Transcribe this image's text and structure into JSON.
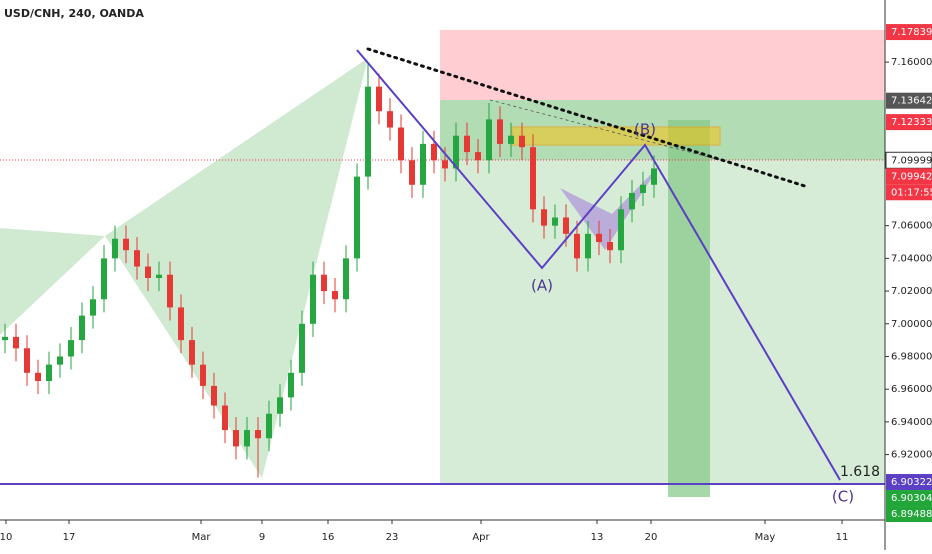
{
  "chart_data": {
    "type": "candlestick",
    "title": "USD/CNH, 240, OANDA",
    "up_color": "#26a641",
    "down_color": "#e53935",
    "ylim": [
      6.88,
      7.198
    ],
    "yticks": [
      {
        "value": 7.16,
        "label": "7.16000"
      },
      {
        "value": 7.06,
        "label": "7.06000"
      },
      {
        "value": 7.04,
        "label": "7.04000"
      },
      {
        "value": 7.02,
        "label": "7.02000"
      },
      {
        "value": 7.0,
        "label": "7.00000"
      },
      {
        "value": 6.98,
        "label": "6.98000"
      },
      {
        "value": 6.96,
        "label": "6.96000"
      },
      {
        "value": 6.94,
        "label": "6.94000"
      },
      {
        "value": 6.92,
        "label": "6.92000"
      }
    ],
    "price_labels": [
      {
        "value": 7.17839,
        "label": "7.17839",
        "color": "#f23645"
      },
      {
        "value": 7.13642,
        "label": "7.13642",
        "color": "#555555"
      },
      {
        "value": 7.12333,
        "label": "7.12333",
        "color": "#f23645"
      },
      {
        "value": 7.09999,
        "label": "7.09999",
        "color": "#ffffff"
      },
      {
        "value": 7.09942,
        "label": "7.09942",
        "color": "#f23645"
      },
      {
        "value": 6.90322,
        "label": "6.90322",
        "color": "#5b3fc4"
      },
      {
        "value": 6.90304,
        "label": "6.90304",
        "color": "#22a63a"
      },
      {
        "value": 6.89488,
        "label": "6.89488",
        "color": "#22a63a"
      }
    ],
    "countdown": "01:17:55",
    "xticks": [
      "10",
      "17",
      "Mar",
      "9",
      "16",
      "23",
      "Apr",
      "13",
      "20",
      "May",
      "11"
    ],
    "annotations": [
      "(A)",
      "(B)",
      "(C)",
      "1.618"
    ],
    "candles": [
      {
        "o": 6.99,
        "h": 7.0,
        "l": 6.982,
        "c": 6.992
      },
      {
        "o": 6.992,
        "h": 7.0,
        "l": 6.977,
        "c": 6.985
      },
      {
        "o": 6.985,
        "h": 6.993,
        "l": 6.962,
        "c": 6.97
      },
      {
        "o": 6.97,
        "h": 6.978,
        "l": 6.957,
        "c": 6.965
      },
      {
        "o": 6.965,
        "h": 6.983,
        "l": 6.957,
        "c": 6.975
      },
      {
        "o": 6.975,
        "h": 6.988,
        "l": 6.967,
        "c": 6.98
      },
      {
        "o": 6.98,
        "h": 6.998,
        "l": 6.972,
        "c": 6.99
      },
      {
        "o": 6.99,
        "h": 7.013,
        "l": 6.982,
        "c": 7.005
      },
      {
        "o": 7.005,
        "h": 7.023,
        "l": 6.997,
        "c": 7.015
      },
      {
        "o": 7.015,
        "h": 7.048,
        "l": 7.007,
        "c": 7.04
      },
      {
        "o": 7.04,
        "h": 7.06,
        "l": 7.032,
        "c": 7.052
      },
      {
        "o": 7.052,
        "h": 7.06,
        "l": 7.037,
        "c": 7.045
      },
      {
        "o": 7.045,
        "h": 7.053,
        "l": 7.027,
        "c": 7.035
      },
      {
        "o": 7.035,
        "h": 7.043,
        "l": 7.02,
        "c": 7.028
      },
      {
        "o": 7.028,
        "h": 7.038,
        "l": 7.02,
        "c": 7.03
      },
      {
        "o": 7.03,
        "h": 7.038,
        "l": 7.002,
        "c": 7.01
      },
      {
        "o": 7.01,
        "h": 7.018,
        "l": 6.982,
        "c": 6.99
      },
      {
        "o": 6.99,
        "h": 6.998,
        "l": 6.967,
        "c": 6.975
      },
      {
        "o": 6.975,
        "h": 6.983,
        "l": 6.954,
        "c": 6.962
      },
      {
        "o": 6.962,
        "h": 6.97,
        "l": 6.942,
        "c": 6.95
      },
      {
        "o": 6.95,
        "h": 6.958,
        "l": 6.927,
        "c": 6.935
      },
      {
        "o": 6.935,
        "h": 6.943,
        "l": 6.917,
        "c": 6.925
      },
      {
        "o": 6.925,
        "h": 6.943,
        "l": 6.917,
        "c": 6.935
      },
      {
        "o": 6.935,
        "h": 6.943,
        "l": 6.906,
        "c": 6.93
      },
      {
        "o": 6.93,
        "h": 6.953,
        "l": 6.922,
        "c": 6.945
      },
      {
        "o": 6.945,
        "h": 6.963,
        "l": 6.937,
        "c": 6.955
      },
      {
        "o": 6.955,
        "h": 6.978,
        "l": 6.947,
        "c": 6.97
      },
      {
        "o": 6.97,
        "h": 7.008,
        "l": 6.962,
        "c": 7.0
      },
      {
        "o": 7.0,
        "h": 7.038,
        "l": 6.992,
        "c": 7.03
      },
      {
        "o": 7.03,
        "h": 7.038,
        "l": 7.012,
        "c": 7.02
      },
      {
        "o": 7.02,
        "h": 7.028,
        "l": 7.007,
        "c": 7.015
      },
      {
        "o": 7.015,
        "h": 7.048,
        "l": 7.007,
        "c": 7.04
      },
      {
        "o": 7.04,
        "h": 7.098,
        "l": 7.032,
        "c": 7.09
      },
      {
        "o": 7.09,
        "h": 7.16,
        "l": 7.082,
        "c": 7.145
      },
      {
        "o": 7.145,
        "h": 7.153,
        "l": 7.122,
        "c": 7.13
      },
      {
        "o": 7.13,
        "h": 7.138,
        "l": 7.112,
        "c": 7.12
      },
      {
        "o": 7.12,
        "h": 7.128,
        "l": 7.092,
        "c": 7.1
      },
      {
        "o": 7.1,
        "h": 7.108,
        "l": 7.077,
        "c": 7.085
      },
      {
        "o": 7.085,
        "h": 7.118,
        "l": 7.077,
        "c": 7.11
      },
      {
        "o": 7.11,
        "h": 7.118,
        "l": 7.092,
        "c": 7.1
      },
      {
        "o": 7.1,
        "h": 7.108,
        "l": 7.087,
        "c": 7.095
      },
      {
        "o": 7.095,
        "h": 7.123,
        "l": 7.087,
        "c": 7.115
      },
      {
        "o": 7.115,
        "h": 7.123,
        "l": 7.097,
        "c": 7.105
      },
      {
        "o": 7.105,
        "h": 7.113,
        "l": 7.092,
        "c": 7.1
      },
      {
        "o": 7.1,
        "h": 7.135,
        "l": 7.092,
        "c": 7.125
      },
      {
        "o": 7.125,
        "h": 7.133,
        "l": 7.102,
        "c": 7.11
      },
      {
        "o": 7.11,
        "h": 7.123,
        "l": 7.102,
        "c": 7.115
      },
      {
        "o": 7.115,
        "h": 7.123,
        "l": 7.1,
        "c": 7.108
      },
      {
        "o": 7.108,
        "h": 7.116,
        "l": 7.062,
        "c": 7.07
      },
      {
        "o": 7.07,
        "h": 7.078,
        "l": 7.052,
        "c": 7.06
      },
      {
        "o": 7.06,
        "h": 7.073,
        "l": 7.052,
        "c": 7.065
      },
      {
        "o": 7.065,
        "h": 7.073,
        "l": 7.047,
        "c": 7.055
      },
      {
        "o": 7.055,
        "h": 7.063,
        "l": 7.032,
        "c": 7.04
      },
      {
        "o": 7.04,
        "h": 7.063,
        "l": 7.032,
        "c": 7.055
      },
      {
        "o": 7.055,
        "h": 7.063,
        "l": 7.042,
        "c": 7.05
      },
      {
        "o": 7.05,
        "h": 7.058,
        "l": 7.037,
        "c": 7.045
      },
      {
        "o": 7.045,
        "h": 7.078,
        "l": 7.037,
        "c": 7.07
      },
      {
        "o": 7.07,
        "h": 7.088,
        "l": 7.062,
        "c": 7.08
      },
      {
        "o": 7.08,
        "h": 7.093,
        "l": 7.072,
        "c": 7.085
      },
      {
        "o": 7.085,
        "h": 7.103,
        "l": 7.077,
        "c": 7.095
      }
    ]
  }
}
